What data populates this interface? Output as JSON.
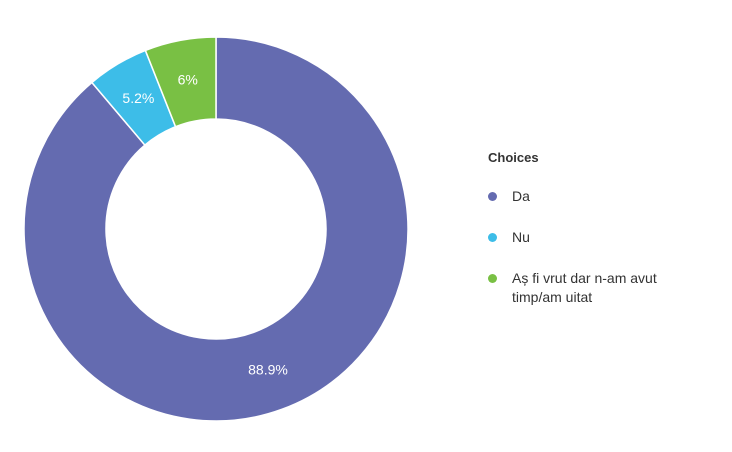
{
  "chart_data": {
    "type": "pie",
    "donut": true,
    "legend_title": "Choices",
    "legend_position": "right",
    "slices": [
      {
        "label": "Da",
        "value": 88.9,
        "value_label": "88.9%",
        "color": "#646bb0"
      },
      {
        "label": "Nu",
        "value": 5.2,
        "value_label": "5.2%",
        "color": "#3dbde8"
      },
      {
        "label": "Aș fi vrut dar n-am avut timp/am uitat",
        "value": 6,
        "value_label": "6%",
        "color": "#79c044"
      }
    ]
  }
}
